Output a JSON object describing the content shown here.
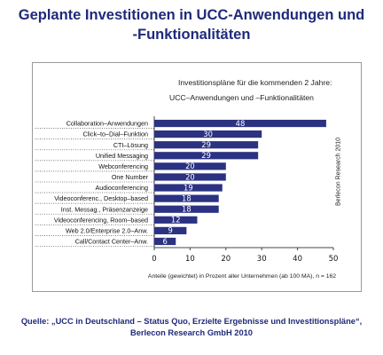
{
  "page": {
    "title_line1": "Geplante Investitionen in UCC-Anwendungen und",
    "title_line2": "-Funktionalitäten",
    "source_line1": "Quelle: „UCC in Deutschland – Status Quo, Erzielte Ergebnisse und Investitionspläne“,",
    "source_line2": "Berlecon Research GmbH 2010"
  },
  "chart_data": {
    "type": "bar",
    "orientation": "horizontal",
    "title": "Investitionspläne für die kommenden 2 Jahre:",
    "subtitle": "UCC–Anwendungen und –Funktionalitäten",
    "side_note": "Berlecon Research 2010",
    "xlabel": "Anteile (gewichtet) in Prozent aller Unternehmen (ab 100 MA), n = 162",
    "xlim": [
      0,
      50
    ],
    "xticks": [
      0,
      10,
      20,
      30,
      40,
      50
    ],
    "bar_color": "#2b3282",
    "label_color": "#ffffff",
    "grid": false,
    "categories": [
      "Collaboration–Anwendungen",
      "Click–to–Dial–Funktion",
      "CTI–Lösung",
      "Unified Messaging",
      "Webconferencing",
      "One Number",
      "Audioconferencing",
      "Videoconferenc., Desktop–based",
      "Inst. Messag., Präsenzanzeige",
      "Videoconferencing, Room–based",
      "Web 2.0/Enterprise 2.0–Anw.",
      "Call/Contact Center–Anw."
    ],
    "values": [
      48,
      30,
      29,
      29,
      20,
      20,
      19,
      18,
      18,
      12,
      9,
      6
    ]
  }
}
